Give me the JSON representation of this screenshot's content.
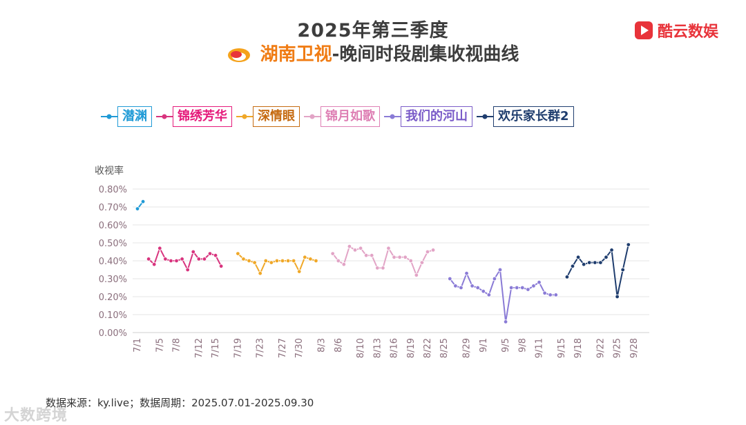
{
  "header": {
    "title": "2025年第三季度",
    "channel": "湖南卫视",
    "subtitle": "-晚间时段剧集收视曲线"
  },
  "brand": {
    "name": "酷云数娱",
    "icon": "play-icon",
    "color": "#e8333a"
  },
  "footer": {
    "source": "数据来源：ky.live；数据周期：2025.07.01-2025.09.30"
  },
  "watermark": {
    "text": "大数跨境"
  },
  "chart_data": {
    "type": "line",
    "ylabel": "收视率",
    "ylim": [
      0,
      0.8
    ],
    "y_ticks": [
      "0.00%",
      "0.10%",
      "0.20%",
      "0.30%",
      "0.40%",
      "0.50%",
      "0.60%",
      "0.70%",
      "0.80%"
    ],
    "x_start": "7/1",
    "x_end": "9/30",
    "x_ticks": [
      "7/1",
      "7/5",
      "7/8",
      "7/12",
      "7/15",
      "7/19",
      "7/23",
      "7/27",
      "7/30",
      "8/3",
      "8/6",
      "8/10",
      "8/13",
      "8/16",
      "8/19",
      "8/22",
      "8/25",
      "8/29",
      "9/1",
      "9/5",
      "9/8",
      "9/11",
      "9/15",
      "9/18",
      "9/22",
      "9/25",
      "9/28"
    ],
    "grid": "horizontal",
    "legend_position": "top",
    "series": [
      {
        "name": "潜渊",
        "color": "#1f9ad6",
        "text_color": "#1f9ad6",
        "points": [
          [
            "7/1",
            0.69
          ],
          [
            "7/2",
            0.73
          ]
        ]
      },
      {
        "name": "锦绣芳华",
        "color": "#d8347e",
        "text_color": "#e5197a",
        "points": [
          [
            "7/3",
            0.41
          ],
          [
            "7/4",
            0.38
          ],
          [
            "7/5",
            0.47
          ],
          [
            "7/6",
            0.41
          ],
          [
            "7/7",
            0.4
          ],
          [
            "7/8",
            0.4
          ],
          [
            "7/9",
            0.41
          ],
          [
            "7/10",
            0.35
          ],
          [
            "7/11",
            0.45
          ],
          [
            "7/12",
            0.41
          ],
          [
            "7/13",
            0.41
          ],
          [
            "7/14",
            0.44
          ],
          [
            "7/15",
            0.43
          ],
          [
            "7/16",
            0.37
          ]
        ]
      },
      {
        "name": "深情眼",
        "color": "#f0a828",
        "text_color": "#c56a10",
        "points": [
          [
            "7/19",
            0.44
          ],
          [
            "7/20",
            0.41
          ],
          [
            "7/21",
            0.4
          ],
          [
            "7/22",
            0.39
          ],
          [
            "7/23",
            0.33
          ],
          [
            "7/24",
            0.4
          ],
          [
            "7/25",
            0.39
          ],
          [
            "7/26",
            0.4
          ],
          [
            "7/27",
            0.4
          ],
          [
            "7/28",
            0.4
          ],
          [
            "7/29",
            0.4
          ],
          [
            "7/30",
            0.34
          ],
          [
            "7/31",
            0.42
          ],
          [
            "8/1",
            0.41
          ],
          [
            "8/2",
            0.4
          ]
        ]
      },
      {
        "name": "锦月如歌",
        "color": "#e2a4c6",
        "text_color": "#de7fb4",
        "points": [
          [
            "8/5",
            0.44
          ],
          [
            "8/6",
            0.4
          ],
          [
            "8/7",
            0.38
          ],
          [
            "8/8",
            0.48
          ],
          [
            "8/9",
            0.46
          ],
          [
            "8/10",
            0.47
          ],
          [
            "8/11",
            0.43
          ],
          [
            "8/12",
            0.43
          ],
          [
            "8/13",
            0.36
          ],
          [
            "8/14",
            0.36
          ],
          [
            "8/15",
            0.47
          ],
          [
            "8/16",
            0.42
          ],
          [
            "8/17",
            0.42
          ],
          [
            "8/18",
            0.42
          ],
          [
            "8/19",
            0.4
          ],
          [
            "8/20",
            0.32
          ],
          [
            "8/21",
            0.39
          ],
          [
            "8/22",
            0.45
          ],
          [
            "8/23",
            0.46
          ]
        ]
      },
      {
        "name": "我们的河山",
        "color": "#8a7bd6",
        "text_color": "#7a5bc8",
        "points": [
          [
            "8/26",
            0.3
          ],
          [
            "8/27",
            0.26
          ],
          [
            "8/28",
            0.25
          ],
          [
            "8/29",
            0.33
          ],
          [
            "8/30",
            0.26
          ],
          [
            "8/31",
            0.25
          ],
          [
            "9/1",
            0.23
          ],
          [
            "9/2",
            0.21
          ],
          [
            "9/3",
            0.3
          ],
          [
            "9/4",
            0.35
          ],
          [
            "9/5",
            0.06
          ],
          [
            "9/6",
            0.25
          ],
          [
            "9/7",
            0.25
          ],
          [
            "9/8",
            0.25
          ],
          [
            "9/9",
            0.24
          ],
          [
            "9/10",
            0.26
          ],
          [
            "9/11",
            0.28
          ],
          [
            "9/12",
            0.22
          ],
          [
            "9/13",
            0.21
          ],
          [
            "9/14",
            0.21
          ]
        ]
      },
      {
        "name": "欢乐家长群2",
        "color": "#1f3d6e",
        "text_color": "#1f3d6e",
        "points": [
          [
            "9/16",
            0.31
          ],
          [
            "9/17",
            0.37
          ],
          [
            "9/18",
            0.42
          ],
          [
            "9/19",
            0.38
          ],
          [
            "9/20",
            0.39
          ],
          [
            "9/21",
            0.39
          ],
          [
            "9/22",
            0.39
          ],
          [
            "9/23",
            0.42
          ],
          [
            "9/24",
            0.46
          ],
          [
            "9/25",
            0.2
          ],
          [
            "9/26",
            0.35
          ],
          [
            "9/27",
            0.49
          ]
        ]
      }
    ]
  }
}
